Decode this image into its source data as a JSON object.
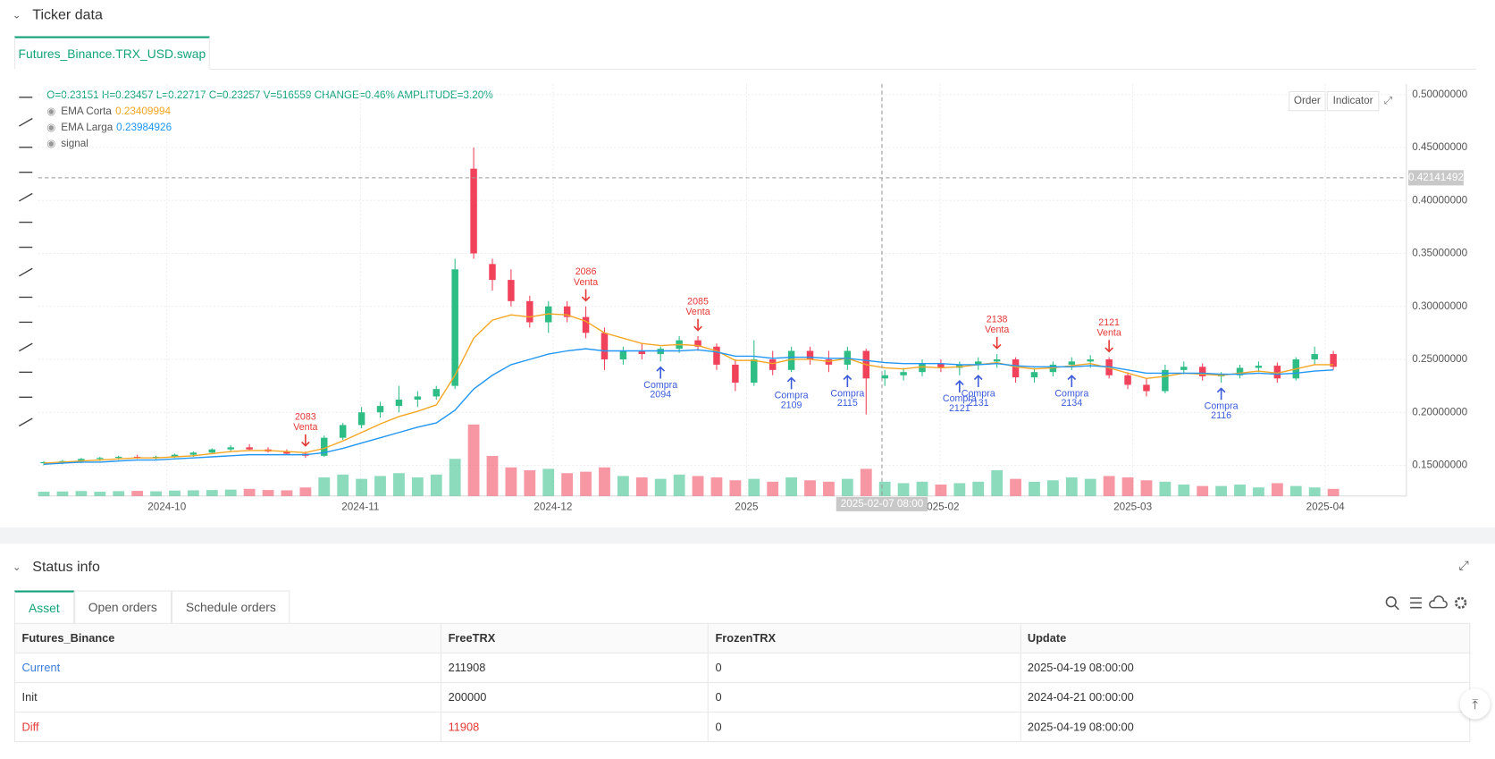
{
  "header": {
    "title": "Ticker data",
    "tab": "Futures_Binance.TRX_USD.swap"
  },
  "chart_data": {
    "type": "candlestick",
    "readout": "O=0.23151 H=0.23457 L=0.22717 C=0.23257 V=516559 CHANGE=0.46% AMPLITUDE=3.20%",
    "buttons": [
      "Order",
      "Indicator"
    ],
    "ylim": [
      0.121,
      0.51
    ],
    "yticks": [
      {
        "value": 0.15,
        "label": "0.15000000"
      },
      {
        "value": 0.2,
        "label": "0.20000000"
      },
      {
        "value": 0.25,
        "label": "0.25000000"
      },
      {
        "value": 0.3,
        "label": "0.30000000"
      },
      {
        "value": 0.35,
        "label": "0.35000000"
      },
      {
        "value": 0.4,
        "label": "0.40000000"
      },
      {
        "value": 0.45,
        "label": "0.45000000"
      },
      {
        "value": 0.5,
        "label": "0.50000000"
      }
    ],
    "xticks": [
      "2024-10",
      "2024-11",
      "2024-12",
      "2025",
      "2025-02",
      "2025-03",
      "2025-04"
    ],
    "grid": true,
    "up_color": "#2ebd85",
    "down_color": "#f0425a",
    "crosshair": {
      "price": {
        "value": 0.42141492,
        "label": "0.42141492"
      },
      "date": "2025-02-07 08:00"
    },
    "candles": [
      [
        0.152,
        0.154,
        0.15,
        0.153
      ],
      [
        0.153,
        0.155,
        0.151,
        0.154
      ],
      [
        0.154,
        0.157,
        0.152,
        0.156
      ],
      [
        0.156,
        0.158,
        0.154,
        0.157
      ],
      [
        0.157,
        0.159,
        0.155,
        0.158
      ],
      [
        0.158,
        0.16,
        0.156,
        0.157
      ],
      [
        0.157,
        0.159,
        0.155,
        0.158
      ],
      [
        0.158,
        0.161,
        0.157,
        0.16
      ],
      [
        0.16,
        0.163,
        0.158,
        0.162
      ],
      [
        0.162,
        0.166,
        0.161,
        0.165
      ],
      [
        0.165,
        0.169,
        0.163,
        0.167
      ],
      [
        0.167,
        0.17,
        0.164,
        0.165
      ],
      [
        0.165,
        0.167,
        0.162,
        0.163
      ],
      [
        0.163,
        0.165,
        0.16,
        0.161
      ],
      [
        0.161,
        0.163,
        0.157,
        0.159
      ],
      [
        0.159,
        0.178,
        0.158,
        0.176
      ],
      [
        0.176,
        0.19,
        0.174,
        0.188
      ],
      [
        0.188,
        0.205,
        0.185,
        0.2
      ],
      [
        0.2,
        0.21,
        0.195,
        0.206
      ],
      [
        0.206,
        0.225,
        0.2,
        0.212
      ],
      [
        0.212,
        0.22,
        0.205,
        0.215
      ],
      [
        0.215,
        0.225,
        0.212,
        0.222
      ],
      [
        0.225,
        0.345,
        0.222,
        0.335
      ],
      [
        0.43,
        0.45,
        0.345,
        0.35
      ],
      [
        0.34,
        0.345,
        0.315,
        0.325
      ],
      [
        0.325,
        0.335,
        0.3,
        0.305
      ],
      [
        0.305,
        0.31,
        0.28,
        0.285
      ],
      [
        0.285,
        0.305,
        0.275,
        0.3
      ],
      [
        0.3,
        0.305,
        0.285,
        0.29
      ],
      [
        0.29,
        0.3,
        0.27,
        0.275
      ],
      [
        0.275,
        0.28,
        0.24,
        0.25
      ],
      [
        0.25,
        0.262,
        0.245,
        0.258
      ],
      [
        0.258,
        0.265,
        0.25,
        0.255
      ],
      [
        0.255,
        0.262,
        0.248,
        0.26
      ],
      [
        0.26,
        0.272,
        0.256,
        0.268
      ],
      [
        0.268,
        0.272,
        0.258,
        0.262
      ],
      [
        0.262,
        0.265,
        0.24,
        0.245
      ],
      [
        0.245,
        0.25,
        0.22,
        0.228
      ],
      [
        0.228,
        0.268,
        0.225,
        0.25
      ],
      [
        0.25,
        0.258,
        0.235,
        0.24
      ],
      [
        0.24,
        0.262,
        0.238,
        0.258
      ],
      [
        0.258,
        0.262,
        0.245,
        0.25
      ],
      [
        0.25,
        0.258,
        0.238,
        0.245
      ],
      [
        0.245,
        0.262,
        0.24,
        0.258
      ],
      [
        0.258,
        0.26,
        0.198,
        0.232
      ],
      [
        0.232,
        0.24,
        0.225,
        0.235
      ],
      [
        0.235,
        0.242,
        0.23,
        0.238
      ],
      [
        0.238,
        0.25,
        0.234,
        0.246
      ],
      [
        0.246,
        0.25,
        0.238,
        0.242
      ],
      [
        0.242,
        0.248,
        0.235,
        0.245
      ],
      [
        0.245,
        0.252,
        0.24,
        0.248
      ],
      [
        0.248,
        0.255,
        0.242,
        0.25
      ],
      [
        0.25,
        0.252,
        0.228,
        0.233
      ],
      [
        0.233,
        0.242,
        0.228,
        0.238
      ],
      [
        0.238,
        0.248,
        0.234,
        0.245
      ],
      [
        0.245,
        0.252,
        0.24,
        0.248
      ],
      [
        0.248,
        0.254,
        0.242,
        0.25
      ],
      [
        0.25,
        0.252,
        0.232,
        0.235
      ],
      [
        0.235,
        0.238,
        0.222,
        0.226
      ],
      [
        0.226,
        0.232,
        0.215,
        0.22
      ],
      [
        0.22,
        0.245,
        0.218,
        0.24
      ],
      [
        0.24,
        0.248,
        0.236,
        0.243
      ],
      [
        0.243,
        0.246,
        0.23,
        0.234
      ],
      [
        0.234,
        0.238,
        0.228,
        0.235
      ],
      [
        0.235,
        0.245,
        0.232,
        0.242
      ],
      [
        0.242,
        0.248,
        0.238,
        0.244
      ],
      [
        0.244,
        0.247,
        0.228,
        0.232
      ],
      [
        0.232,
        0.252,
        0.23,
        0.25
      ],
      [
        0.25,
        0.262,
        0.245,
        0.255
      ],
      [
        0.255,
        0.258,
        0.24,
        0.243
      ]
    ],
    "volume": [
      300000,
      320000,
      350000,
      300000,
      340000,
      360000,
      330000,
      380000,
      400000,
      420000,
      450000,
      500000,
      420000,
      400000,
      600000,
      1300000,
      1500000,
      1200000,
      1400000,
      1600000,
      1300000,
      1500000,
      2600000,
      5000000,
      2800000,
      2000000,
      1800000,
      1900000,
      1600000,
      1700000,
      2000000,
      1400000,
      1300000,
      1200000,
      1500000,
      1400000,
      1300000,
      1100000,
      1200000,
      1000000,
      1300000,
      1100000,
      1000000,
      1200000,
      1900000,
      1000000,
      900000,
      1000000,
      800000,
      900000,
      1000000,
      1800000,
      1200000,
      1000000,
      1100000,
      1300000,
      1200000,
      1400000,
      1300000,
      1100000,
      1000000,
      800000,
      700000,
      700000,
      800000,
      600000,
      900000,
      700000,
      600000,
      500000
    ],
    "series": [
      {
        "name": "EMA Corta",
        "color": "#f5a623",
        "current": 0.23409994,
        "values": [
          0.152,
          0.153,
          0.154,
          0.155,
          0.156,
          0.157,
          0.157,
          0.158,
          0.159,
          0.161,
          0.163,
          0.164,
          0.164,
          0.163,
          0.162,
          0.166,
          0.173,
          0.181,
          0.189,
          0.196,
          0.201,
          0.207,
          0.235,
          0.27,
          0.287,
          0.292,
          0.29,
          0.293,
          0.292,
          0.286,
          0.275,
          0.27,
          0.265,
          0.263,
          0.264,
          0.263,
          0.258,
          0.249,
          0.249,
          0.246,
          0.25,
          0.25,
          0.248,
          0.251,
          0.245,
          0.242,
          0.241,
          0.243,
          0.242,
          0.243,
          0.245,
          0.247,
          0.243,
          0.241,
          0.242,
          0.244,
          0.246,
          0.242,
          0.237,
          0.232,
          0.234,
          0.237,
          0.236,
          0.235,
          0.237,
          0.239,
          0.237,
          0.241,
          0.245,
          0.245
        ]
      },
      {
        "name": "EMA Larga",
        "color": "#2196f3",
        "current": 0.23984926,
        "values": [
          0.151,
          0.152,
          0.153,
          0.153,
          0.154,
          0.155,
          0.155,
          0.156,
          0.157,
          0.158,
          0.159,
          0.16,
          0.16,
          0.16,
          0.16,
          0.162,
          0.166,
          0.171,
          0.176,
          0.181,
          0.186,
          0.19,
          0.202,
          0.222,
          0.235,
          0.245,
          0.25,
          0.255,
          0.258,
          0.26,
          0.258,
          0.258,
          0.258,
          0.258,
          0.258,
          0.259,
          0.257,
          0.253,
          0.253,
          0.251,
          0.252,
          0.252,
          0.251,
          0.251,
          0.249,
          0.247,
          0.246,
          0.246,
          0.246,
          0.245,
          0.245,
          0.246,
          0.244,
          0.243,
          0.243,
          0.243,
          0.244,
          0.243,
          0.24,
          0.237,
          0.237,
          0.237,
          0.237,
          0.236,
          0.236,
          0.237,
          0.236,
          0.237,
          0.239,
          0.24
        ]
      },
      {
        "name": "signal"
      }
    ],
    "signals": [
      {
        "label": "2083",
        "text": "Venta"
      },
      {
        "label": "2086",
        "text": "Venta"
      },
      {
        "label": "2094",
        "text": "Compra"
      },
      {
        "label": "2085",
        "text": "Venta"
      },
      {
        "label": "2109",
        "text": "Compra"
      },
      {
        "label": "2115",
        "text": "Compra"
      },
      {
        "label": "2121",
        "text": "Compra"
      },
      {
        "label": "2131",
        "text": "Compra"
      },
      {
        "label": "2138",
        "text": "Venta"
      },
      {
        "label": "2134",
        "text": "Compra"
      },
      {
        "label": "2121",
        "text": "Venta"
      },
      {
        "label": "2116",
        "text": "Compra"
      }
    ]
  },
  "status": {
    "title": "Status info",
    "tabs": [
      "Asset",
      "Open orders",
      "Schedule orders"
    ],
    "columns": [
      "Futures_Binance",
      "FreeTRX",
      "FrozenTRX",
      "Update"
    ],
    "rows": [
      [
        "Current",
        "211908",
        "0",
        "2025-04-19 08:00:00"
      ],
      [
        "Init",
        "200000",
        "0",
        "2024-04-21 00:00:00"
      ],
      [
        "Diff",
        "11908",
        "0",
        "2025-04-19 08:00:00"
      ]
    ]
  }
}
